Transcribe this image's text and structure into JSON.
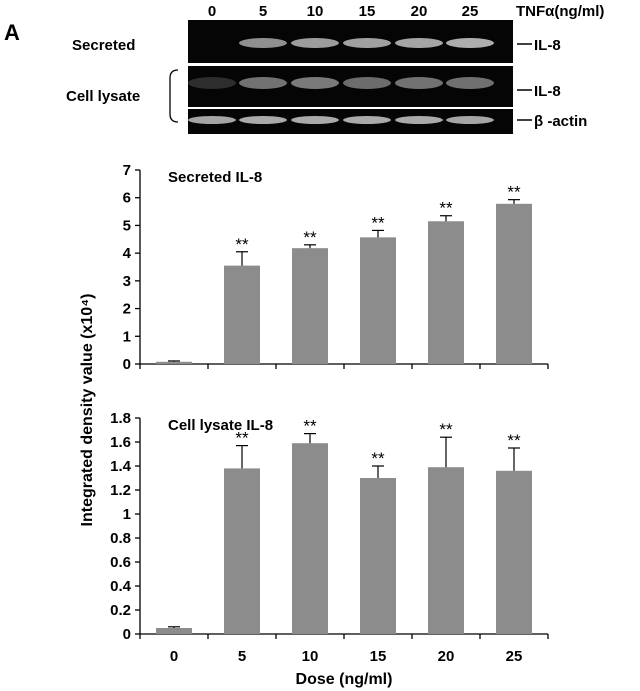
{
  "panel_label": "A",
  "blot": {
    "dose_labels": [
      "0",
      "5",
      "10",
      "15",
      "20",
      "25"
    ],
    "treatment_label": "TNFα(ng/ml)",
    "row_labels": {
      "secreted": "Secreted",
      "lysate": "Cell lysate"
    },
    "band_labels": {
      "secreted": "IL-8",
      "lysate": "IL-8",
      "actin": "β -actin"
    },
    "band_intensity": {
      "secreted": [
        0.0,
        0.62,
        0.7,
        0.72,
        0.75,
        0.8
      ],
      "lysate": [
        0.05,
        0.45,
        0.5,
        0.42,
        0.45,
        0.44
      ],
      "actin": [
        0.75,
        0.78,
        0.78,
        0.78,
        0.78,
        0.76
      ]
    }
  },
  "colors": {
    "bar": "#8c8c8c",
    "blot_bg": "#050505",
    "band": "#d9d9d9"
  },
  "chart_data": [
    {
      "type": "bar",
      "title": "Secreted IL-8",
      "categories": [
        "0",
        "5",
        "10",
        "15",
        "20",
        "25"
      ],
      "values": [
        0.08,
        3.55,
        4.18,
        4.57,
        5.15,
        5.78
      ],
      "errors": [
        0.03,
        0.5,
        0.12,
        0.25,
        0.2,
        0.15
      ],
      "annotations": [
        "",
        "**",
        "**",
        "**",
        "**",
        "**"
      ],
      "ylim": [
        0,
        7
      ],
      "yticks": [
        "0",
        "1",
        "2",
        "3",
        "4",
        "5",
        "6",
        "7"
      ],
      "grid": false
    },
    {
      "type": "bar",
      "title": "Cell lysate IL-8",
      "categories": [
        "0",
        "5",
        "10",
        "15",
        "20",
        "25"
      ],
      "values": [
        0.05,
        1.38,
        1.59,
        1.3,
        1.39,
        1.36
      ],
      "errors": [
        0.01,
        0.19,
        0.08,
        0.1,
        0.25,
        0.19
      ],
      "annotations": [
        "",
        "**",
        "**",
        "**",
        "**",
        "**"
      ],
      "ylim": [
        0,
        1.8
      ],
      "yticks": [
        "0",
        "0.2",
        "0.4",
        "0.6",
        "0.8",
        "1",
        "1.2",
        "1.4",
        "1.6",
        "1.8"
      ],
      "xlabel": "Dose (ng/ml)",
      "grid": false
    }
  ],
  "shared_ylabel": "Integrated density value (x10⁴)"
}
